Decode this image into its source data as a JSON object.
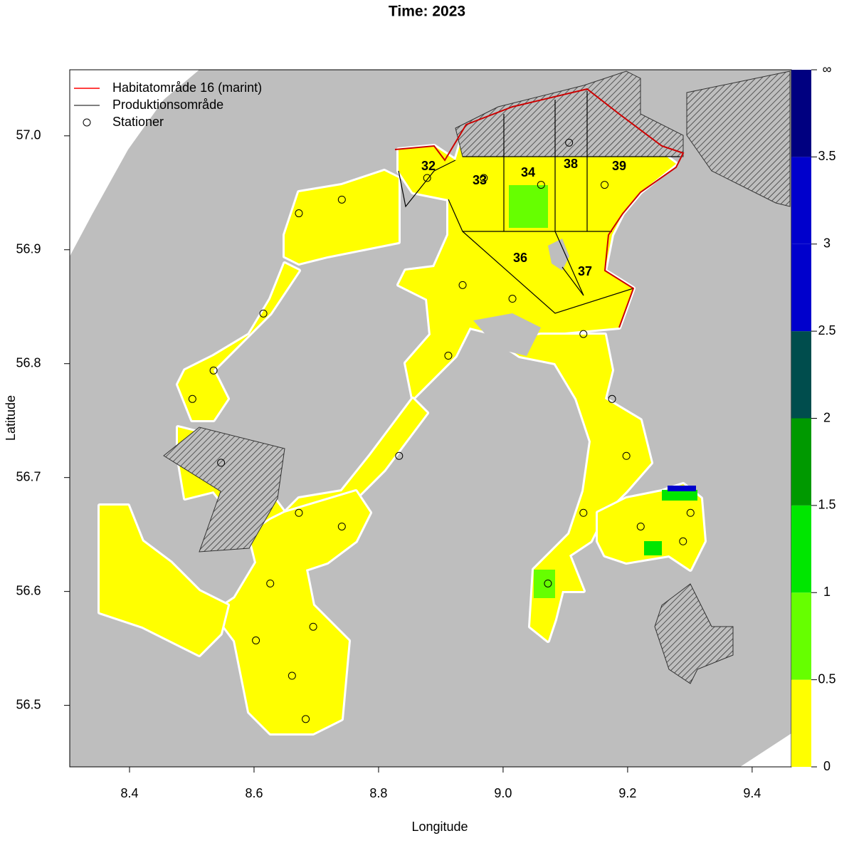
{
  "chart_data": {
    "type": "map",
    "title": "Time: 2023",
    "x_label": "Longitude",
    "y_label": "Latitude",
    "xlim": [
      8.304,
      9.463
    ],
    "ylim": [
      56.446,
      57.058
    ],
    "xticks": [
      8.4,
      8.6,
      8.8,
      {
        "value": 9,
        "label": "9.0"
      },
      9.2,
      9.4
    ],
    "yticks": [
      56.5,
      56.6,
      56.7,
      56.8,
      56.9,
      {
        "value": 57,
        "label": "57.0"
      }
    ],
    "legend": [
      {
        "label": "Habitatområde 16 (marint)",
        "color": "#ff0000"
      },
      {
        "label": "Produktionsområde",
        "color": "#000000"
      },
      {
        "label": "Stationer",
        "color": "#000000"
      }
    ],
    "area_labels": [
      "32",
      "33",
      "34",
      "38",
      "39",
      "36",
      "37"
    ],
    "colorbar": {
      "breaks": [
        0,
        0.5,
        1,
        1.5,
        2,
        2.5,
        3,
        3.5,
        {
          "value": 4,
          "label": "∞"
        }
      ],
      "colors": [
        "#ffff00",
        "#66ff00",
        "#00e600",
        "#009900",
        "#004d4d",
        "#0000cc",
        "#0000cc",
        "#000080"
      ]
    },
    "stations": {
      "lon": [
        8.672,
        8.741,
        8.615,
        8.535,
        8.501,
        8.547,
        8.672,
        8.741,
        8.626,
        8.695,
        8.661,
        8.683,
        8.603,
        8.878,
        8.969,
        9.061,
        9.106,
        9.163,
        8.935,
        9.015,
        8.912,
        9.129,
        9.175,
        9.198,
        9.129,
        9.221,
        9.289,
        9.072,
        8.833,
        9.301
      ],
      "lat": [
        56.932,
        56.944,
        56.844,
        56.794,
        56.769,
        56.713,
        56.669,
        56.657,
        56.607,
        56.569,
        56.526,
        56.488,
        56.557,
        56.963,
        56.963,
        56.957,
        56.994,
        56.957,
        56.869,
        56.857,
        56.807,
        56.826,
        56.769,
        56.719,
        56.669,
        56.657,
        56.644,
        56.607,
        56.719,
        56.669
      ]
    }
  }
}
